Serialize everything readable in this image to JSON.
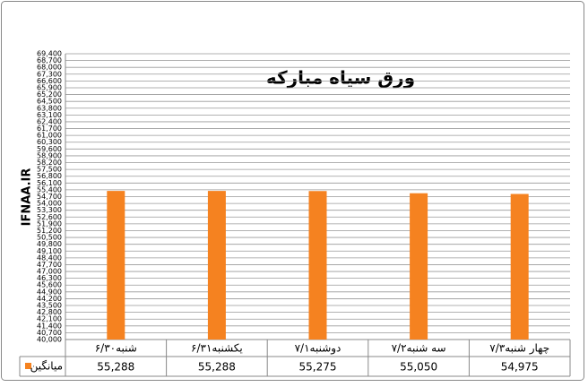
{
  "chart_data": {
    "type": "bar",
    "title": "ورق سیاه مبارکه",
    "y_label": "IFNAA.IR",
    "categories": [
      "شنبه۶/۳۰",
      "یکشنبه۶/۳۱",
      "دوشنبه۷/۱",
      "سه شنبه۷/۲",
      "چهار شنبه۷/۳"
    ],
    "series": [
      {
        "name": "میانگین",
        "color": "#f58220",
        "values": [
          55288,
          55288,
          55275,
          55050,
          54975
        ],
        "value_labels": [
          "55,288",
          "55,288",
          "55,275",
          "55,050",
          "54,975"
        ]
      }
    ],
    "ylim": [
      40000,
      69400
    ],
    "yticks": [
      {
        "value": 40000,
        "label": "40,000"
      },
      {
        "value": 40700,
        "label": "40,700"
      },
      {
        "value": 41400,
        "label": "41,400"
      },
      {
        "value": 42100,
        "label": "42,100"
      },
      {
        "value": 42800,
        "label": "42,800"
      },
      {
        "value": 43500,
        "label": "43,500"
      },
      {
        "value": 44200,
        "label": "44,200"
      },
      {
        "value": 44900,
        "label": "44,900"
      },
      {
        "value": 45600,
        "label": "45,600"
      },
      {
        "value": 46300,
        "label": "46,300"
      },
      {
        "value": 47000,
        "label": "47,000"
      },
      {
        "value": 47700,
        "label": "47,700"
      },
      {
        "value": 48400,
        "label": "48,400"
      },
      {
        "value": 49100,
        "label": "49,100"
      },
      {
        "value": 49800,
        "label": "49,800"
      },
      {
        "value": 50500,
        "label": "50,500"
      },
      {
        "value": 51200,
        "label": "51,200"
      },
      {
        "value": 51900,
        "label": "51,900"
      },
      {
        "value": 52600,
        "label": "52,600"
      },
      {
        "value": 53300,
        "label": "53,300"
      },
      {
        "value": 54000,
        "label": "54,000"
      },
      {
        "value": 54700,
        "label": "54,700"
      },
      {
        "value": 55400,
        "label": "55,400"
      },
      {
        "value": 56100,
        "label": "56,100"
      },
      {
        "value": 56800,
        "label": "56,800"
      },
      {
        "value": 57500,
        "label": "57,500"
      },
      {
        "value": 58200,
        "label": "58,200"
      },
      {
        "value": 58900,
        "label": "58,900"
      },
      {
        "value": 59600,
        "label": "59,600"
      },
      {
        "value": 60300,
        "label": "60,300"
      },
      {
        "value": 61000,
        "label": "61,000"
      },
      {
        "value": 61700,
        "label": "61,700"
      },
      {
        "value": 62400,
        "label": "62,400"
      },
      {
        "value": 63100,
        "label": "63,100"
      },
      {
        "value": 63800,
        "label": "63,800"
      },
      {
        "value": 64500,
        "label": "64,500"
      },
      {
        "value": 65200,
        "label": "65,200"
      },
      {
        "value": 65900,
        "label": "65,900"
      },
      {
        "value": 66600,
        "label": "66,600"
      },
      {
        "value": 67300,
        "label": "67,300"
      },
      {
        "value": 68000,
        "label": "68,000"
      },
      {
        "value": 68700,
        "label": "68,700"
      },
      {
        "value": 69400,
        "label": "69,400"
      }
    ],
    "grid": true
  }
}
